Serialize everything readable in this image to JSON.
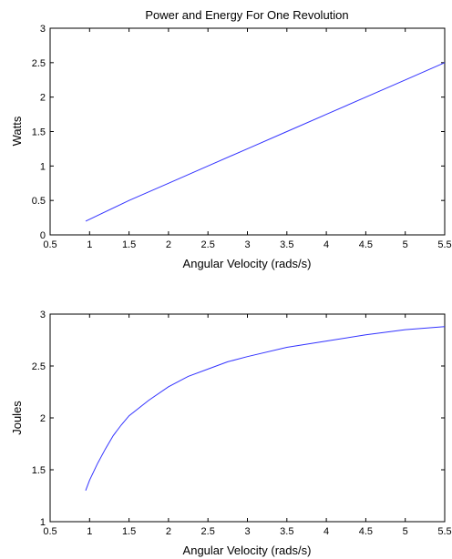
{
  "chart_data": [
    {
      "type": "line",
      "title": "Power and Energy For One Revolution",
      "xlabel": "Angular Velocity (rads/s)",
      "ylabel": "Watts",
      "xlim": [
        0.5,
        5.5
      ],
      "ylim": [
        0,
        3
      ],
      "xticks": [
        "0.5",
        "1",
        "1.5",
        "2",
        "2.5",
        "3",
        "3.5",
        "4",
        "4.5",
        "5",
        "5.5"
      ],
      "yticks": [
        "0",
        "0.5",
        "1",
        "1.5",
        "2",
        "2.5",
        "3"
      ],
      "grid": false,
      "series": [
        {
          "color": "#3333ff",
          "x": [
            0.95,
            1.5,
            2.0,
            2.5,
            3.0,
            3.5,
            4.0,
            4.5,
            5.0,
            5.5
          ],
          "y": [
            0.2,
            0.5,
            0.75,
            1.0,
            1.25,
            1.5,
            1.75,
            2.0,
            2.25,
            2.5
          ]
        }
      ]
    },
    {
      "type": "line",
      "title": "",
      "xlabel": "Angular Velocity (rads/s)",
      "ylabel": "Joules",
      "xlim": [
        0.5,
        5.5
      ],
      "ylim": [
        1,
        3
      ],
      "xticks": [
        "0.5",
        "1",
        "1.5",
        "2",
        "2.5",
        "3",
        "3.5",
        "4",
        "4.5",
        "5",
        "5.5"
      ],
      "yticks": [
        "1",
        "1.5",
        "2",
        "2.5",
        "3"
      ],
      "grid": false,
      "series": [
        {
          "color": "#3333ff",
          "x": [
            0.95,
            1.0,
            1.1,
            1.2,
            1.3,
            1.4,
            1.5,
            1.75,
            2.0,
            2.25,
            2.5,
            2.75,
            3.0,
            3.5,
            4.0,
            4.5,
            5.0,
            5.5
          ],
          "y": [
            1.3,
            1.4,
            1.56,
            1.7,
            1.83,
            1.93,
            2.02,
            2.17,
            2.3,
            2.4,
            2.47,
            2.54,
            2.59,
            2.68,
            2.74,
            2.8,
            2.85,
            2.88
          ]
        }
      ]
    }
  ]
}
